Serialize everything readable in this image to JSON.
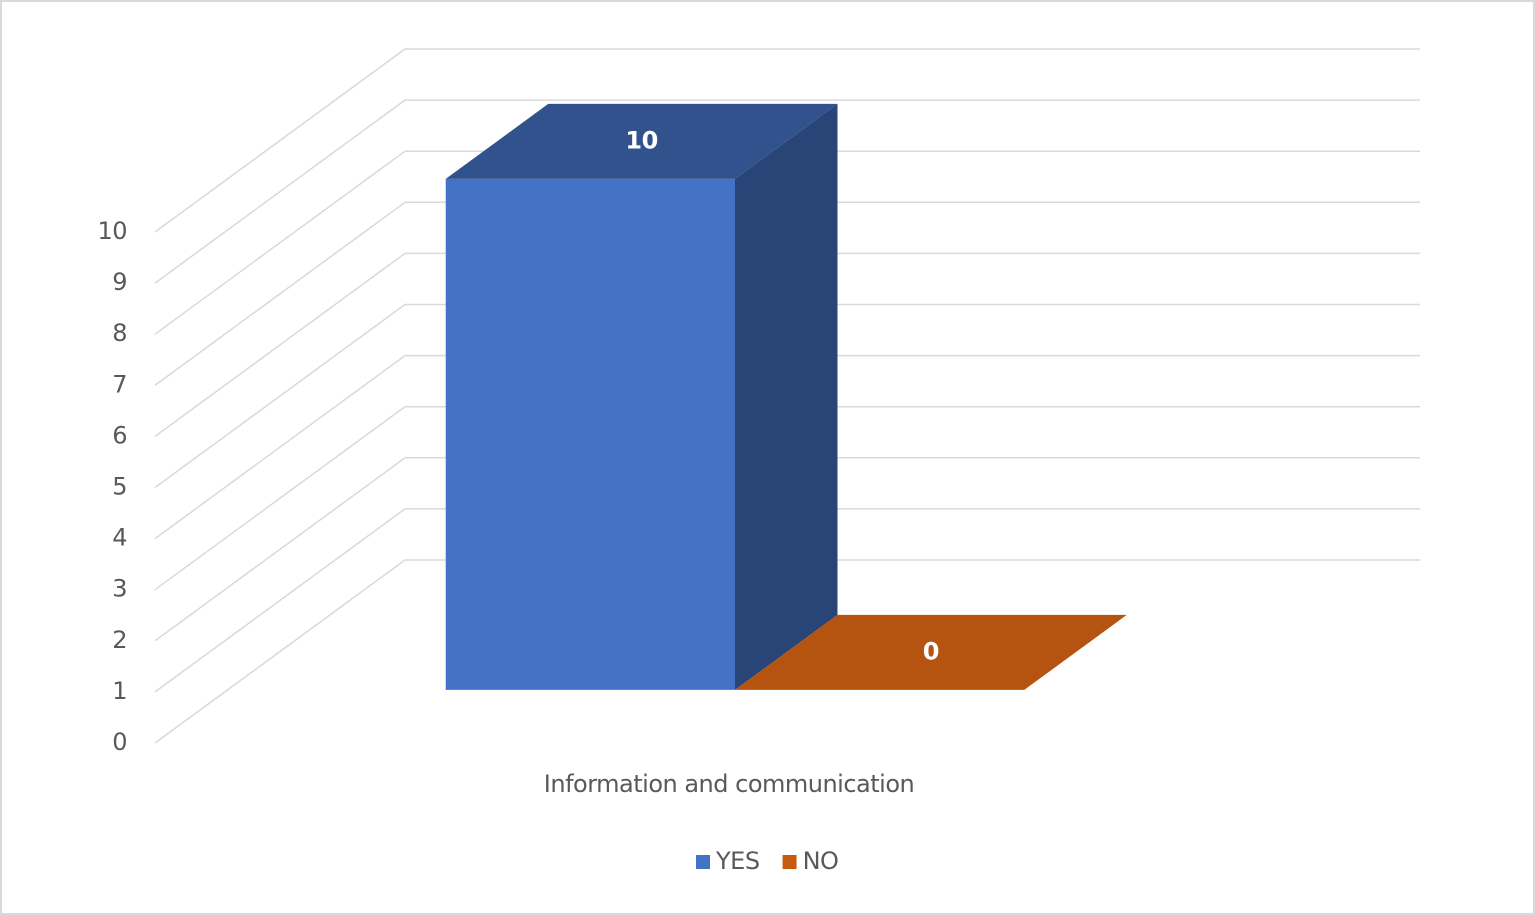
{
  "chart_data": {
    "type": "bar3d",
    "categories": [
      "Information and communication"
    ],
    "series": [
      {
        "name": "YES",
        "color": "#4472c4",
        "values": [
          10
        ]
      },
      {
        "name": "NO",
        "color": "#c55a11",
        "values": [
          0
        ]
      }
    ],
    "ylim": [
      0,
      10
    ],
    "yticks": [
      0,
      1,
      2,
      3,
      4,
      5,
      6,
      7,
      8,
      9,
      10
    ],
    "grid": true,
    "legend": "bottom"
  }
}
